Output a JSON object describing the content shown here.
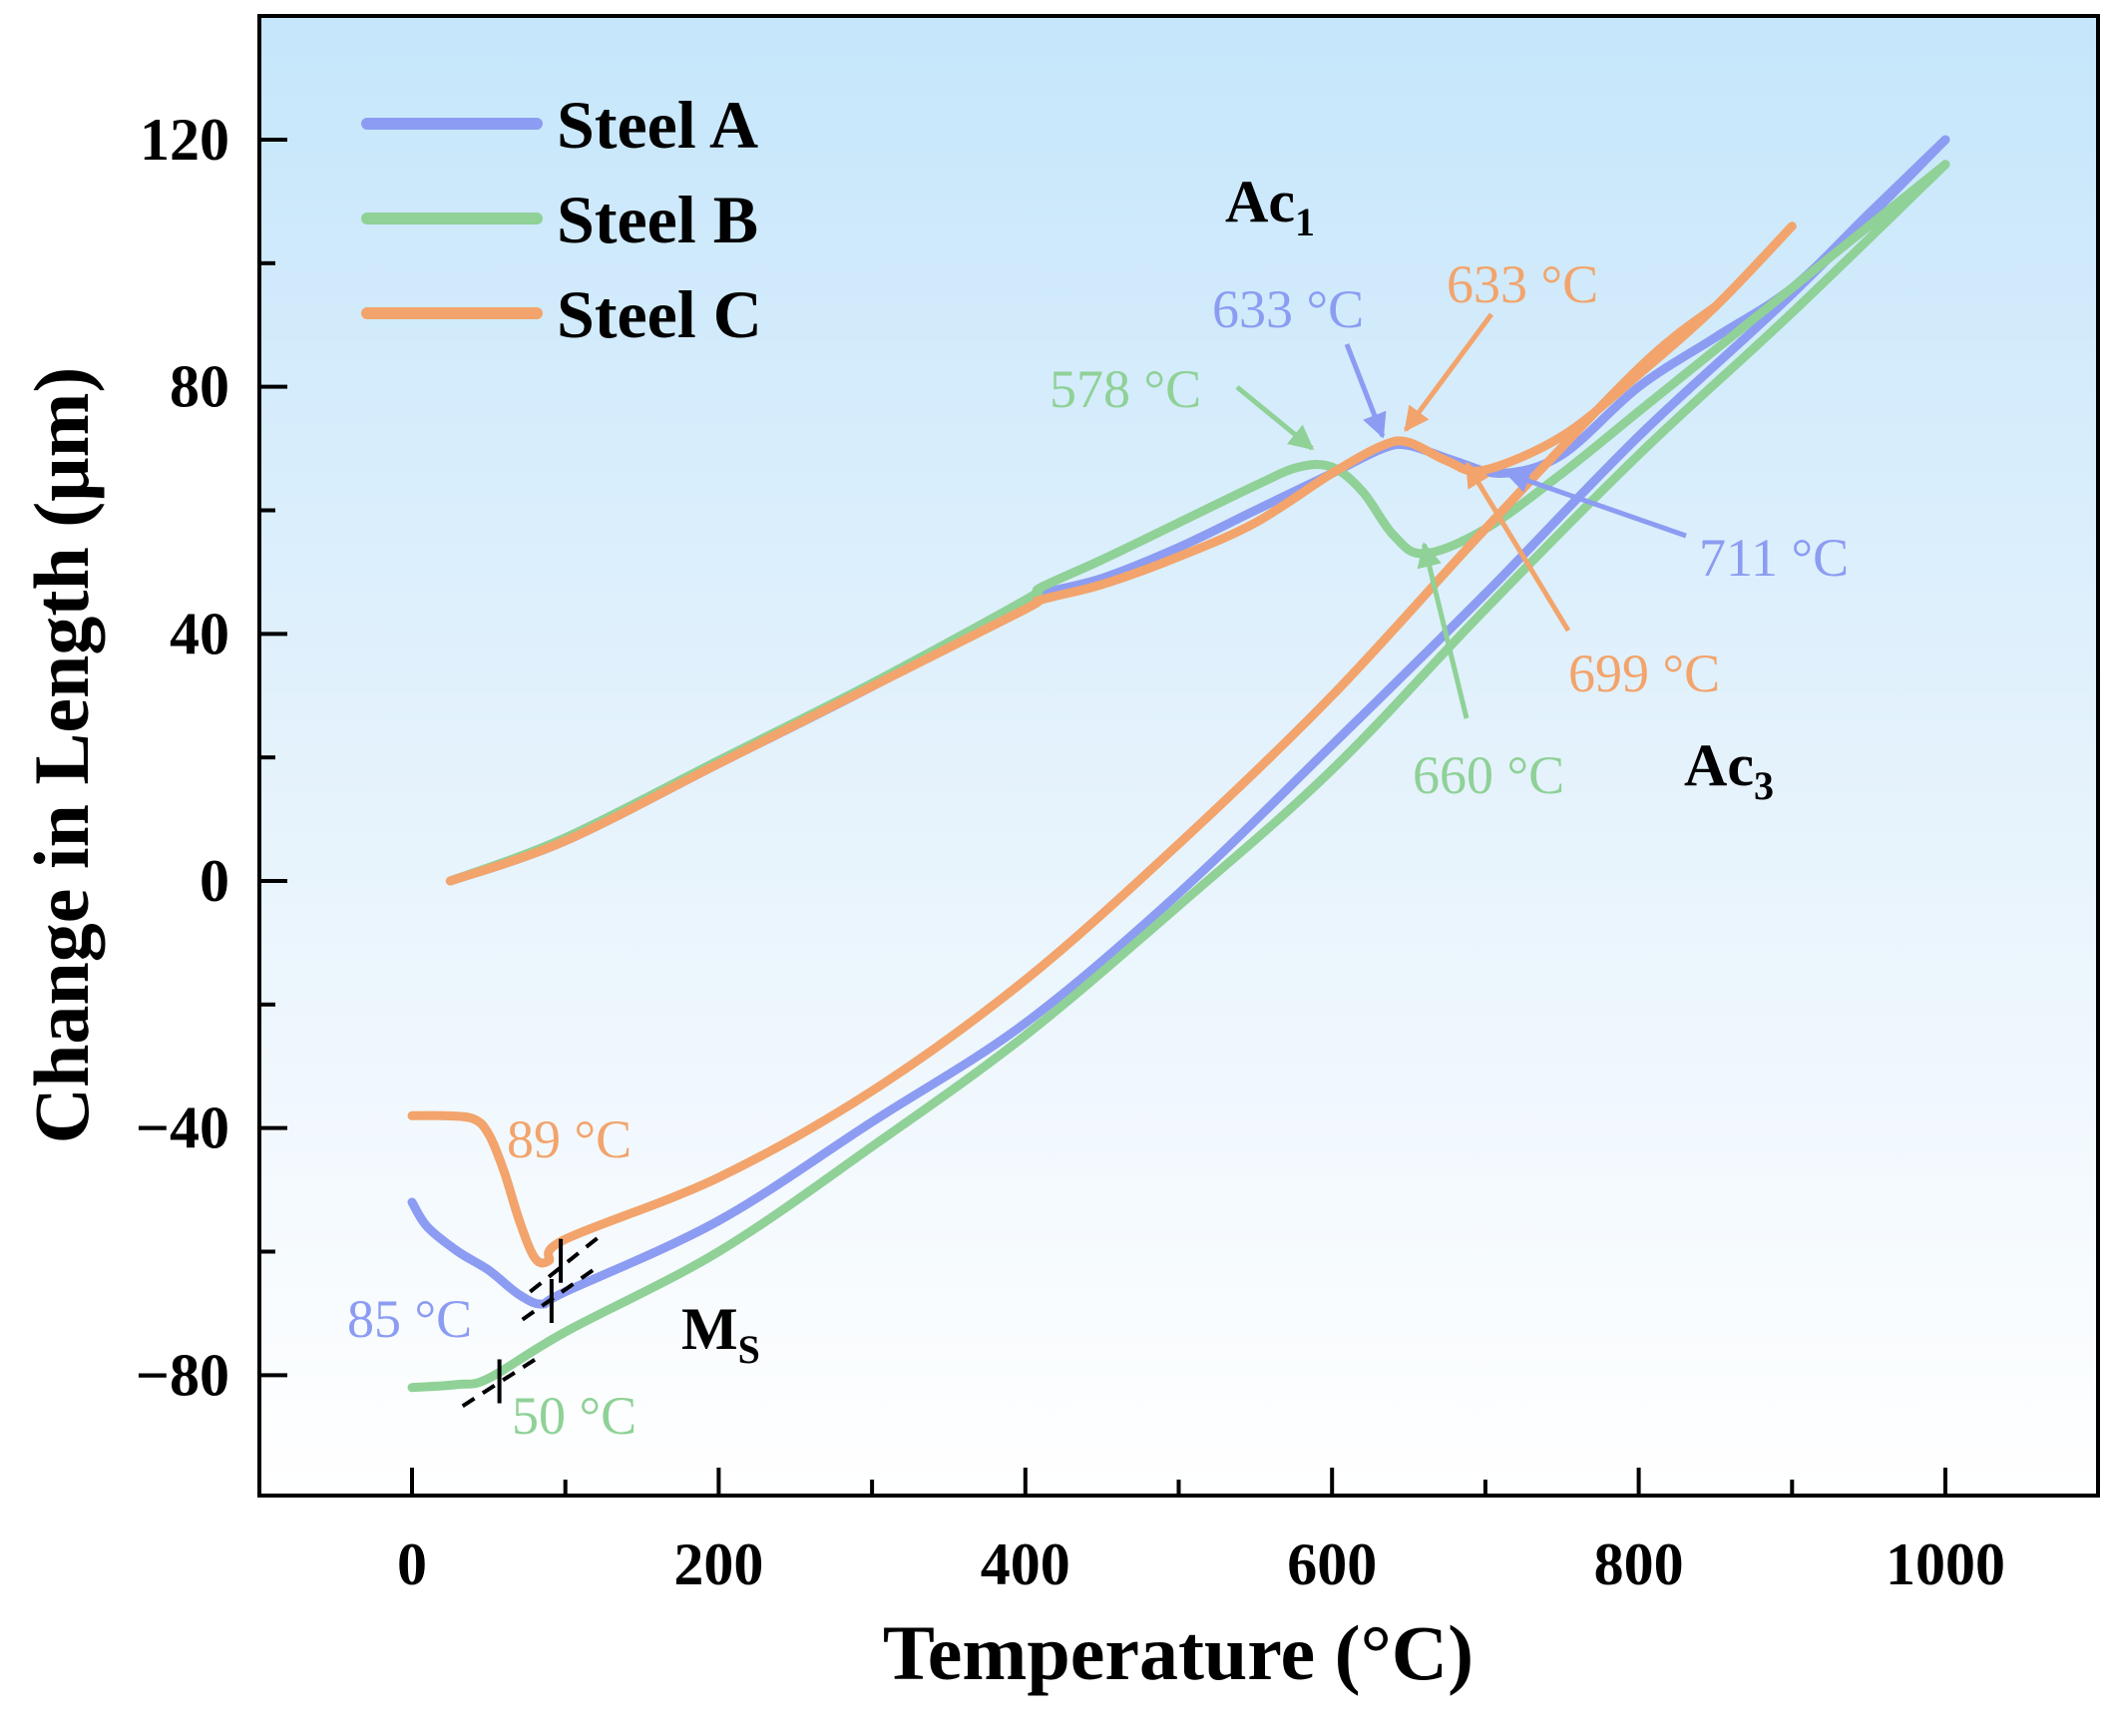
{
  "chart_data": {
    "type": "line",
    "title": "",
    "xlabel": "Temperature (°C)",
    "ylabel": "Change in Length (μm)",
    "xlim": [
      -100,
      1100
    ],
    "ylim": [
      -100,
      140
    ],
    "xticks": [
      0,
      200,
      400,
      600,
      800,
      1000
    ],
    "xtick_labels": [
      "0",
      "200",
      "400",
      "600",
      "800",
      "1000"
    ],
    "yticks": [
      -80,
      -40,
      0,
      40,
      80,
      120
    ],
    "ytick_labels": [
      "−80",
      "−40",
      "0",
      "40",
      "80",
      "120"
    ],
    "grid": false,
    "legend_position": "top-left",
    "series": [
      {
        "name": "Steel A",
        "color": "#8c9cf2",
        "heating": [
          [
            25,
            0
          ],
          [
            100,
            6.5
          ],
          [
            200,
            19
          ],
          [
            300,
            31.5
          ],
          [
            400,
            45
          ],
          [
            410,
            46.5
          ],
          [
            450,
            49
          ],
          [
            500,
            54
          ],
          [
            550,
            60
          ],
          [
            600,
            66
          ],
          [
            633,
            70
          ],
          [
            650,
            70.5
          ],
          [
            680,
            68
          ],
          [
            711,
            66
          ],
          [
            750,
            69
          ],
          [
            800,
            80
          ],
          [
            850,
            88
          ],
          [
            900,
            96
          ],
          [
            950,
            108
          ],
          [
            1000,
            120
          ]
        ],
        "cooling": [
          [
            1000,
            120
          ],
          [
            900,
            95
          ],
          [
            800,
            72
          ],
          [
            700,
            46.5
          ],
          [
            600,
            22
          ],
          [
            500,
            -2
          ],
          [
            400,
            -23
          ],
          [
            300,
            -39
          ],
          [
            200,
            -55
          ],
          [
            100,
            -66.5
          ],
          [
            85,
            -68.5
          ],
          [
            70,
            -67
          ],
          [
            50,
            -63
          ],
          [
            30,
            -60
          ],
          [
            10,
            -56
          ],
          [
            0,
            -52
          ]
        ]
      },
      {
        "name": "Steel B",
        "color": "#8fd197",
        "heating": [
          [
            25,
            0
          ],
          [
            100,
            7
          ],
          [
            200,
            19.5
          ],
          [
            300,
            32
          ],
          [
            400,
            45.5
          ],
          [
            410,
            47.5
          ],
          [
            450,
            52
          ],
          [
            500,
            58
          ],
          [
            550,
            64
          ],
          [
            578,
            67
          ],
          [
            600,
            67
          ],
          [
            620,
            63
          ],
          [
            640,
            56
          ],
          [
            660,
            53
          ],
          [
            700,
            57
          ],
          [
            750,
            66
          ],
          [
            800,
            76
          ],
          [
            850,
            86
          ],
          [
            900,
            96
          ],
          [
            950,
            106
          ],
          [
            1000,
            116
          ]
        ],
        "cooling": [
          [
            1000,
            116
          ],
          [
            900,
            92
          ],
          [
            800,
            69
          ],
          [
            700,
            44
          ],
          [
            600,
            18
          ],
          [
            500,
            -4
          ],
          [
            400,
            -25
          ],
          [
            300,
            -43
          ],
          [
            200,
            -60
          ],
          [
            100,
            -73
          ],
          [
            50,
            -80.5
          ],
          [
            30,
            -81.5
          ],
          [
            0,
            -82
          ]
        ]
      },
      {
        "name": "Steel C",
        "color": "#f2a46c",
        "heating": [
          [
            25,
            0
          ],
          [
            100,
            6.5
          ],
          [
            200,
            19
          ],
          [
            300,
            31.5
          ],
          [
            400,
            44
          ],
          [
            410,
            45.5
          ],
          [
            450,
            48
          ],
          [
            500,
            52.5
          ],
          [
            550,
            58
          ],
          [
            600,
            66
          ],
          [
            633,
            70.5
          ],
          [
            650,
            71
          ],
          [
            675,
            68
          ],
          [
            699,
            66.5
          ],
          [
            750,
            72
          ],
          [
            800,
            82
          ],
          [
            850,
            93
          ],
          [
            900,
            106
          ]
        ],
        "cooling": [
          [
            850,
            93
          ],
          [
            800,
            83
          ],
          [
            700,
            57
          ],
          [
            600,
            30
          ],
          [
            500,
            6
          ],
          [
            400,
            -16
          ],
          [
            300,
            -34
          ],
          [
            200,
            -48
          ],
          [
            100,
            -58
          ],
          [
            89,
            -61.5
          ],
          [
            80,
            -61
          ],
          [
            70,
            -55
          ],
          [
            60,
            -47
          ],
          [
            50,
            -41
          ],
          [
            40,
            -38.5
          ],
          [
            20,
            -38
          ],
          [
            0,
            -38
          ]
        ]
      }
    ],
    "annotations": [
      {
        "text": "Ac",
        "sub": "1",
        "color": "#000000"
      },
      {
        "text": "Ac",
        "sub": "3",
        "color": "#000000"
      },
      {
        "text": "M",
        "sub": "S",
        "color": "#000000"
      },
      {
        "text": "633 °C",
        "series": "Steel A",
        "point": [
          633,
          70
        ],
        "color": "#8c9cf2"
      },
      {
        "text": "633 °C",
        "series": "Steel C",
        "point": [
          650,
          71
        ],
        "color": "#f2a46c"
      },
      {
        "text": "578 °C",
        "series": "Steel B",
        "point": [
          590,
          68
        ],
        "color": "#8fd197"
      },
      {
        "text": "711 °C",
        "series": "Steel A",
        "point": [
          711,
          66
        ],
        "color": "#8c9cf2"
      },
      {
        "text": "699 °C",
        "series": "Steel C",
        "point": [
          688,
          67
        ],
        "color": "#f2a46c"
      },
      {
        "text": "660 °C",
        "series": "Steel B",
        "point": [
          660,
          53
        ],
        "color": "#8fd197"
      },
      {
        "text": "89 °C",
        "series": "Steel C",
        "point": [
          89,
          -61.5
        ],
        "color": "#f2a46c"
      },
      {
        "text": "85 °C",
        "series": "Steel A",
        "point": [
          85,
          -68.5
        ],
        "color": "#8c9cf2"
      },
      {
        "text": "50 °C",
        "series": "Steel B",
        "point": [
          57,
          -80.5
        ],
        "color": "#8fd197"
      }
    ]
  }
}
